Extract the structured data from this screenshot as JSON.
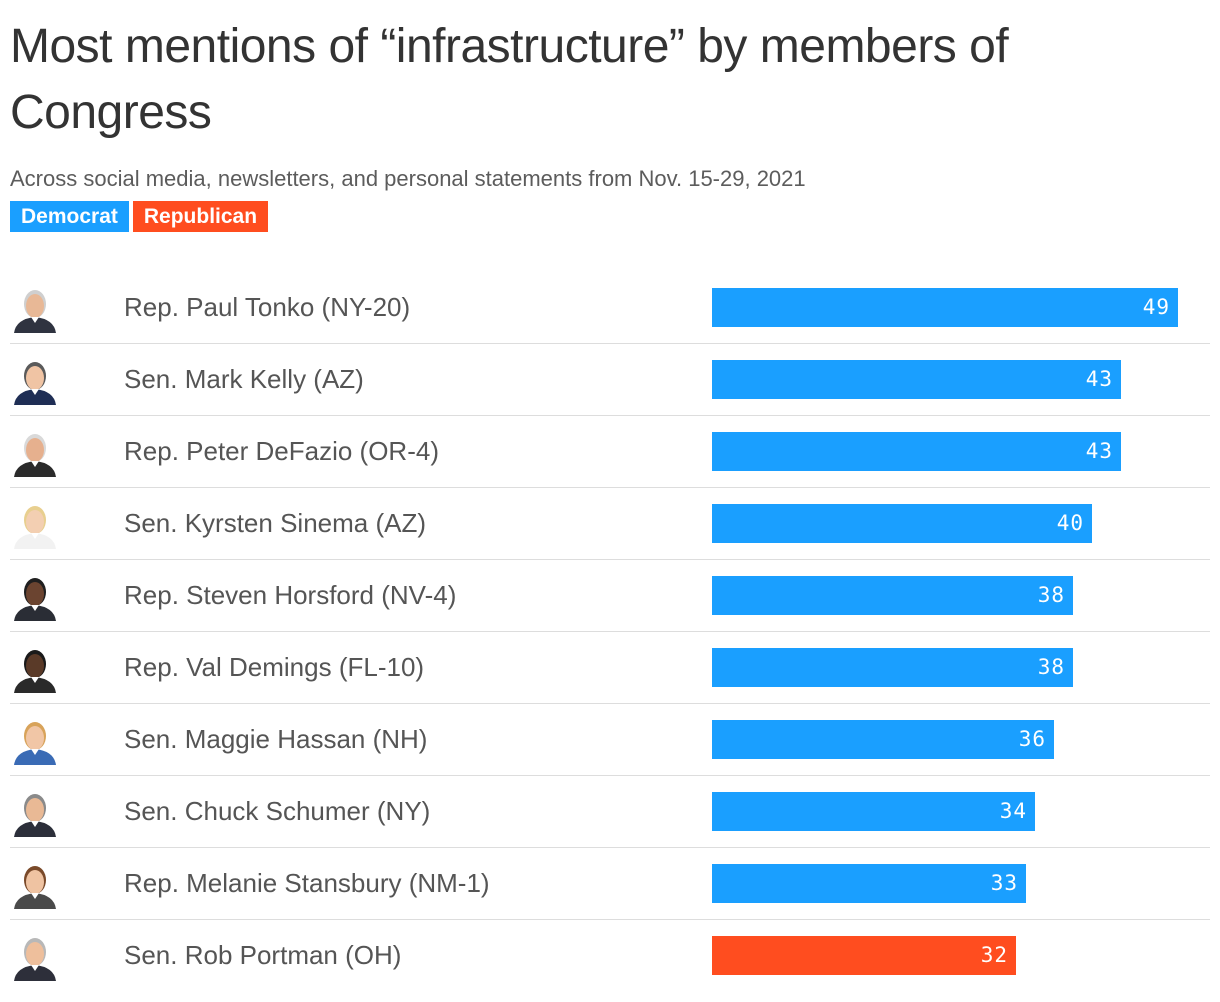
{
  "chart_data": {
    "type": "bar",
    "orientation": "horizontal",
    "title": "Most mentions of “infrastructure” by members of Congress",
    "subtitle": "Across social media, newsletters, and personal statements from Nov. 15-29, 2021",
    "legend": [
      {
        "label": "Democrat",
        "color": "#1A9FFF"
      },
      {
        "label": "Republican",
        "color": "#FF4D1F"
      }
    ],
    "xlim": [
      0,
      49
    ],
    "categories": [
      "Rep. Paul Tonko (NY-20)",
      "Sen. Mark Kelly (AZ)",
      "Rep. Peter DeFazio (OR-4)",
      "Sen. Kyrsten Sinema (AZ)",
      "Rep. Steven Horsford (NV-4)",
      "Rep. Val Demings (FL-10)",
      "Sen. Maggie Hassan (NH)",
      "Sen. Chuck Schumer (NY)",
      "Rep. Melanie Stansbury (NM-1)",
      "Sen. Rob Portman (OH)"
    ],
    "values": [
      49,
      43,
      43,
      40,
      38,
      38,
      36,
      34,
      33,
      32
    ],
    "party": [
      "Democrat",
      "Democrat",
      "Democrat",
      "Democrat",
      "Democrat",
      "Democrat",
      "Democrat",
      "Democrat",
      "Democrat",
      "Republican"
    ],
    "photo_icons": [
      "portrait-icon",
      "portrait-icon",
      "portrait-icon",
      "portrait-icon",
      "portrait-icon",
      "portrait-icon",
      "portrait-icon",
      "portrait-icon",
      "portrait-icon",
      "portrait-icon"
    ]
  }
}
